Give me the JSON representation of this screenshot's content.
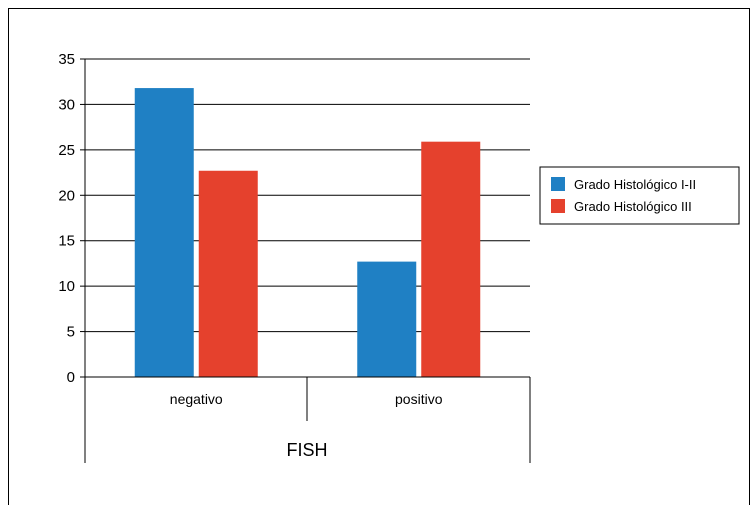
{
  "chart_data": {
    "type": "bar",
    "categories": [
      "negativo",
      "positivo"
    ],
    "series": [
      {
        "name": "Grado Histológico I-II",
        "values": [
          31.8,
          12.7
        ],
        "color": "#1f80c4"
      },
      {
        "name": "Grado Histológico III",
        "values": [
          22.7,
          25.9
        ],
        "color": "#e5412d"
      }
    ],
    "title": "",
    "xlabel": "FISH",
    "ylabel": "",
    "ylim": [
      0,
      35
    ],
    "yticks": [
      0,
      5,
      10,
      15,
      20,
      25,
      30,
      35
    ],
    "grid": "horizontal",
    "legend_position": "right"
  }
}
